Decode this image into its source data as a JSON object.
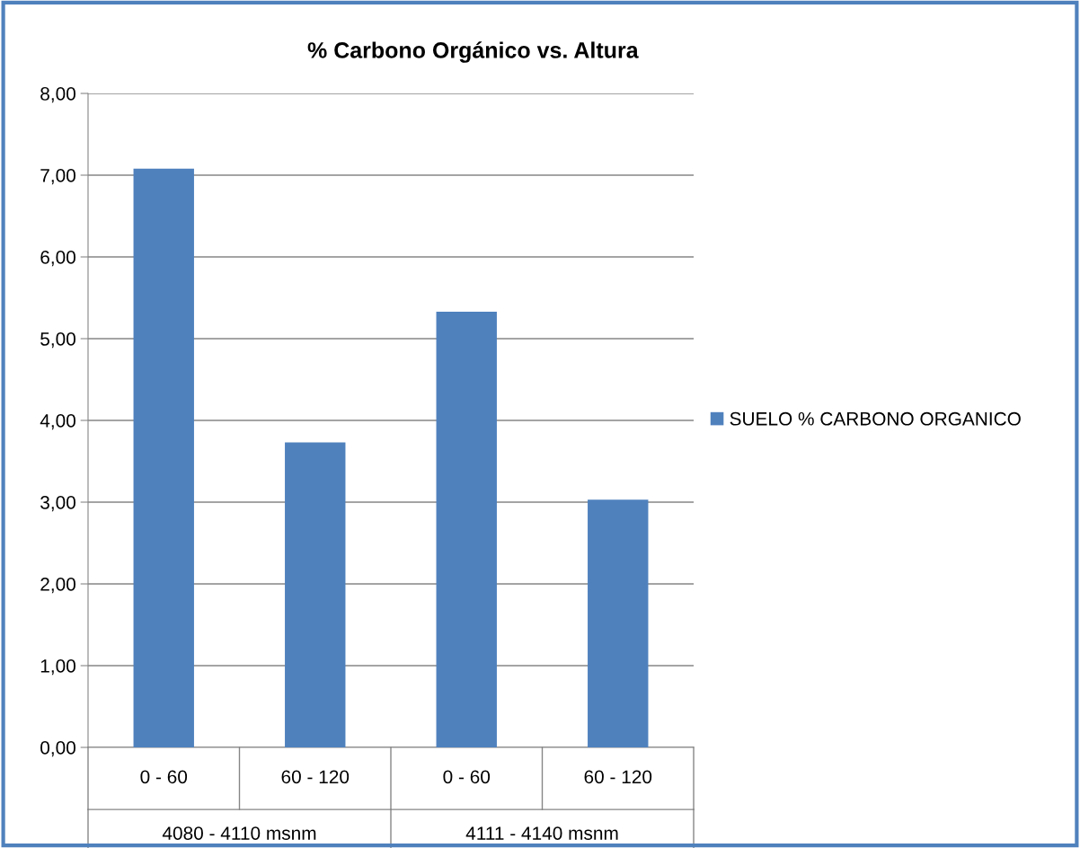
{
  "chart_data": {
    "type": "bar",
    "title": "% Carbono Orgánico vs. Altura",
    "categories": [
      "0 - 60",
      "60 - 120",
      "0 - 60",
      "60 - 120"
    ],
    "series": [
      {
        "name": "SUELO % CARBONO ORGANICO",
        "color": "#4f81bd",
        "values": [
          7.08,
          3.73,
          5.33,
          3.03
        ]
      }
    ],
    "ylim": [
      0,
      8
    ],
    "yticks": [
      {
        "value": 0,
        "label": "0,00"
      },
      {
        "value": 1,
        "label": "1,00"
      },
      {
        "value": 2,
        "label": "2,00"
      },
      {
        "value": 3,
        "label": "3,00"
      },
      {
        "value": 4,
        "label": "4,00"
      },
      {
        "value": 5,
        "label": "5,00"
      },
      {
        "value": 6,
        "label": "6,00"
      },
      {
        "value": 7,
        "label": "7,00"
      },
      {
        "value": 8,
        "label": "8,00"
      }
    ],
    "annotations": [
      "4080 - 4110 msnm",
      "4111 - 4140 msnm"
    ],
    "grid": "y",
    "legend": "right"
  }
}
